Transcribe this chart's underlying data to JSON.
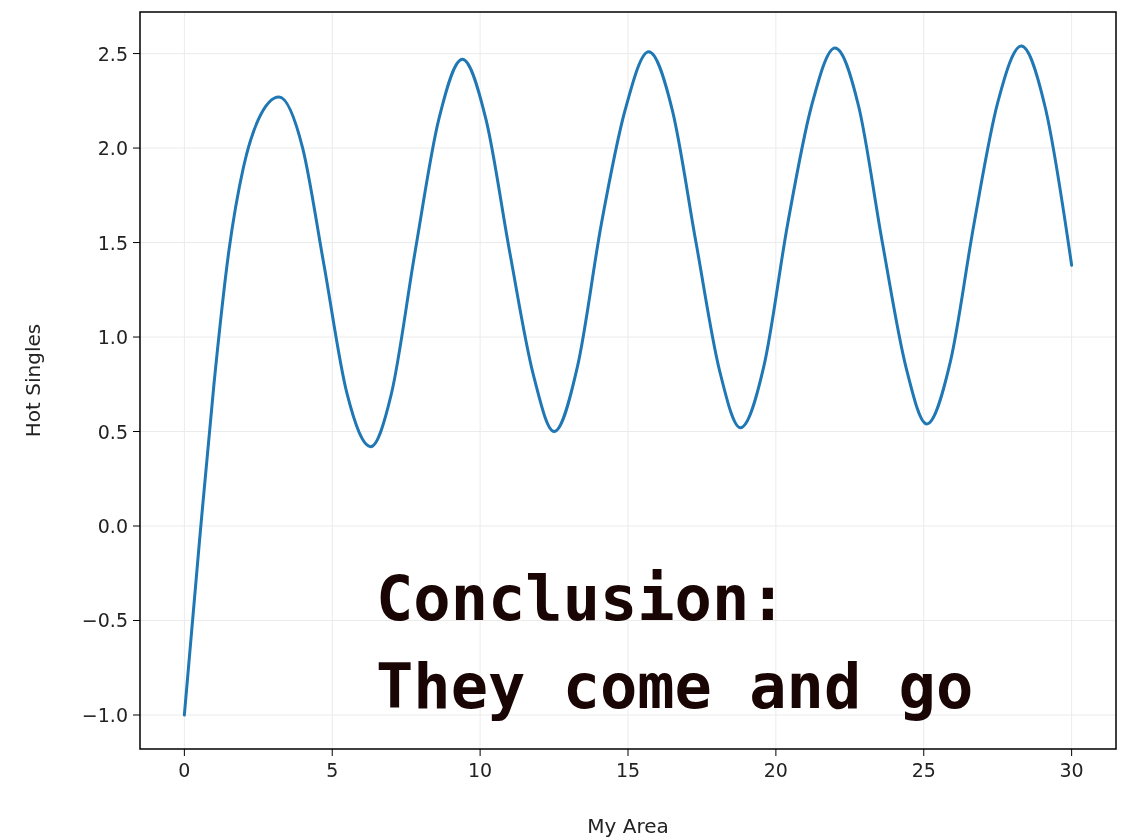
{
  "chart_data": {
    "type": "line",
    "xlabel": "My Area",
    "ylabel": "Hot Singles",
    "annotations": [
      "Conclusion:\nThey come and go"
    ],
    "x": [
      0,
      0.5,
      1,
      1.5,
      2,
      2.5,
      3.2,
      4,
      4.7,
      5.5,
      6.3,
      7,
      7.8,
      8.6,
      9.4,
      10.2,
      11,
      11.8,
      12.5,
      13.3,
      14.1,
      14.9,
      15.7,
      16.5,
      17.3,
      18.1,
      18.8,
      19.6,
      20.4,
      21.2,
      22,
      22.8,
      23.6,
      24.4,
      25.1,
      25.9,
      26.7,
      27.5,
      28.3,
      29.1,
      30
    ],
    "series": [
      {
        "color": "#1f77b4",
        "values": [
          -1.0,
          -0.1,
          0.75,
          1.45,
          1.9,
          2.15,
          2.27,
          2.0,
          1.4,
          0.7,
          0.42,
          0.7,
          1.45,
          2.15,
          2.47,
          2.15,
          1.45,
          0.8,
          0.5,
          0.85,
          1.6,
          2.2,
          2.51,
          2.2,
          1.5,
          0.82,
          0.52,
          0.85,
          1.6,
          2.22,
          2.53,
          2.22,
          1.5,
          0.84,
          0.54,
          0.87,
          1.6,
          2.24,
          2.54,
          2.22,
          1.38
        ]
      }
    ],
    "xlim": [
      -1.5,
      31.5
    ],
    "ylim": [
      -1.18,
      2.72
    ],
    "xticks": [
      0,
      5,
      10,
      15,
      20,
      25,
      30
    ],
    "yticks": [
      {
        "value": -1,
        "label": "−1.0"
      },
      {
        "value": -0.5,
        "label": "−0.5"
      },
      {
        "value": 0,
        "label": "0.0"
      },
      {
        "value": 0.5,
        "label": "0.5"
      },
      {
        "value": 1,
        "label": "1.0"
      },
      {
        "value": 1.5,
        "label": "1.5"
      },
      {
        "value": 2,
        "label": "2.0"
      },
      {
        "value": 2.5,
        "label": "2.5"
      }
    ],
    "grid": true,
    "line_style": "solid",
    "marker": "none"
  }
}
